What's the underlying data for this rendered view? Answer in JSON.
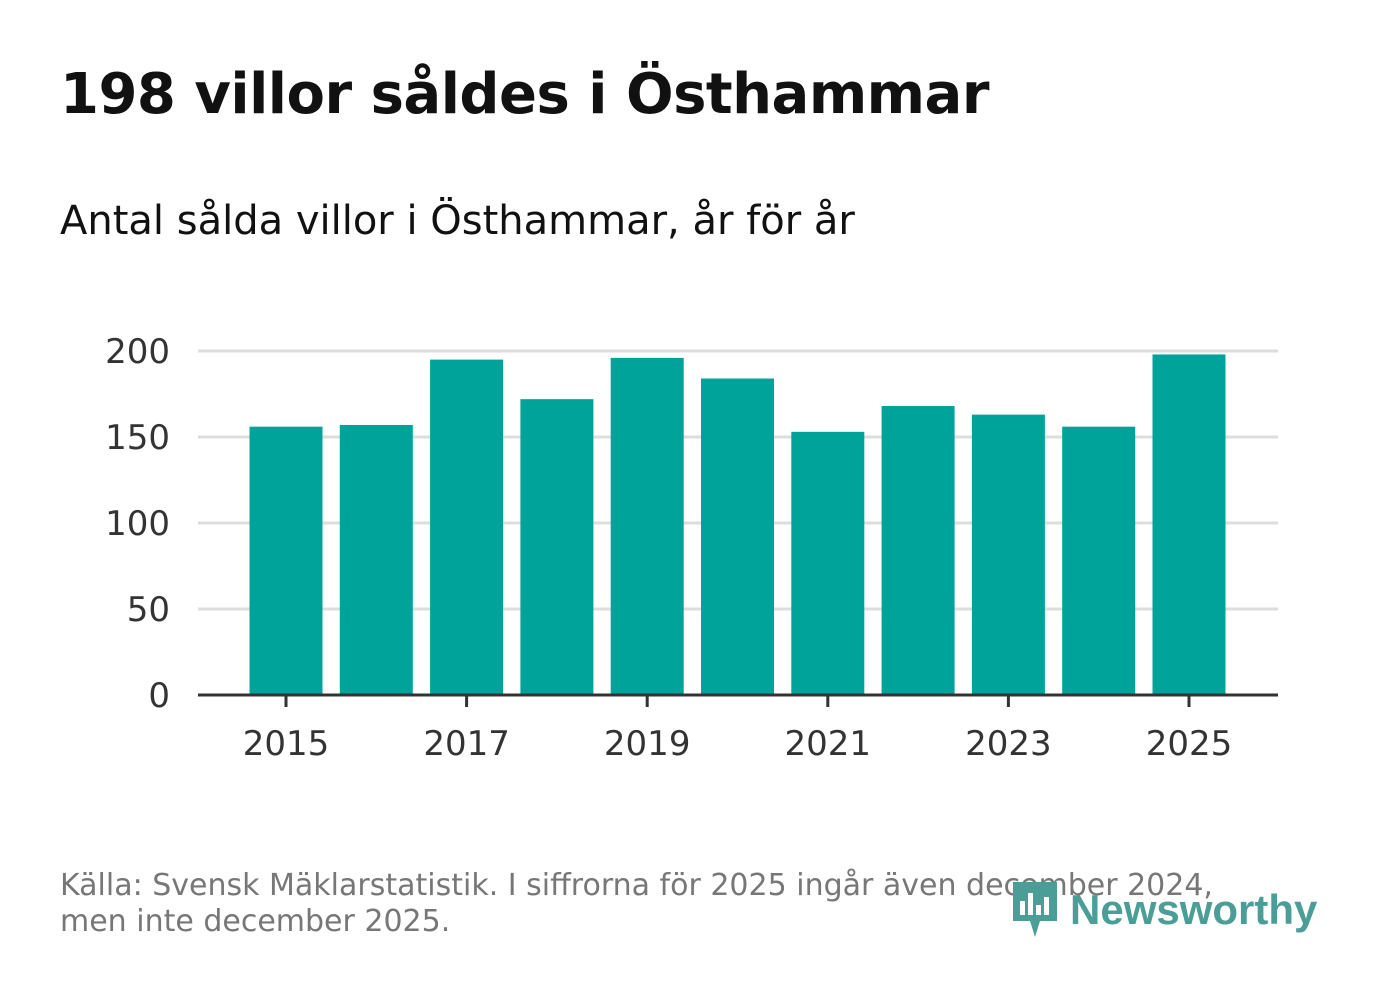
{
  "header": {
    "title": "198 villor såldes i Östhammar",
    "subtitle": "Antal sålda villor i Östhammar, år för år"
  },
  "footer": {
    "source_line1": "Källa: Svensk Mäklarstatistik. I siffrorna för 2025 ingår även december 2024,",
    "source_line2": "men inte december 2025."
  },
  "brand": {
    "name": "Newsworthy",
    "color": "#4a9e97"
  },
  "chart_data": {
    "type": "bar",
    "title": "Antal sålda villor i Östhammar, år för år",
    "xlabel": "",
    "ylabel": "",
    "categories": [
      "2015",
      "2016",
      "2017",
      "2018",
      "2019",
      "2020",
      "2021",
      "2022",
      "2023",
      "2024",
      "2025"
    ],
    "values": [
      156,
      157,
      195,
      172,
      196,
      184,
      153,
      168,
      163,
      156,
      198
    ],
    "x_tick_labels": [
      "2015",
      "2017",
      "2019",
      "2021",
      "2023",
      "2025"
    ],
    "y_ticks": [
      0,
      50,
      100,
      150,
      200
    ],
    "ylim": [
      0,
      200
    ],
    "grid": true,
    "bar_color": "#00a39a",
    "grid_color": "#dddddd",
    "axis_color": "#333333"
  }
}
